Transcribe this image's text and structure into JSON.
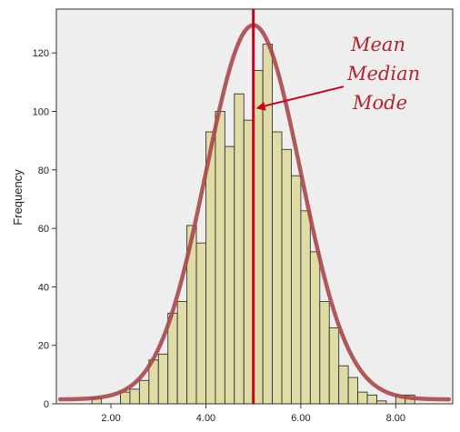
{
  "chart_data": {
    "type": "bar",
    "subtype": "histogram",
    "title": "",
    "xlabel": "",
    "ylabel": "Frequency",
    "xlim": [
      0.85,
      9.2
    ],
    "ylim": [
      0,
      135
    ],
    "bin_width": 0.2,
    "bin_starts": [
      1.6,
      1.8,
      2.0,
      2.2,
      2.4,
      2.6,
      2.8,
      3.0,
      3.2,
      3.4,
      3.6,
      3.8,
      4.0,
      4.2,
      4.4,
      4.6,
      4.8,
      5.0,
      5.2,
      5.4,
      5.6,
      5.8,
      6.0,
      6.2,
      6.4,
      6.6,
      6.8,
      7.0,
      7.2,
      7.4,
      7.6,
      7.8,
      8.0,
      8.2
    ],
    "values": [
      2,
      0,
      0,
      4,
      5,
      8,
      15,
      17,
      31,
      35,
      61,
      55,
      93,
      100,
      88,
      106,
      97,
      114,
      123,
      93,
      87,
      78,
      66,
      52,
      35,
      26,
      13,
      9,
      4,
      3,
      1,
      0,
      3,
      3
    ],
    "x_ticks": [
      2,
      4,
      6,
      8
    ],
    "x_tick_labels": [
      "2.00",
      "4.00",
      "6.00",
      "8.00"
    ],
    "y_ticks": [
      0,
      20,
      40,
      60,
      80,
      100,
      120
    ],
    "y_tick_labels": [
      "0",
      "20",
      "40",
      "60",
      "80",
      "100",
      "120"
    ],
    "grid": false,
    "normal_curve": {
      "mean": 5.0,
      "std_dev": 1.0,
      "peak": 128
    },
    "reference_line": {
      "x": 5.0,
      "label_lines": [
        "Mean",
        "Median",
        "Mode"
      ]
    },
    "colors": {
      "bar_fill": "#e0dca6",
      "bar_stroke": "#333333",
      "plot_background": "#eeeeee",
      "curve": "#a9474a",
      "reference_line": "#c8001f",
      "annotation_text": "#b0252d"
    }
  }
}
